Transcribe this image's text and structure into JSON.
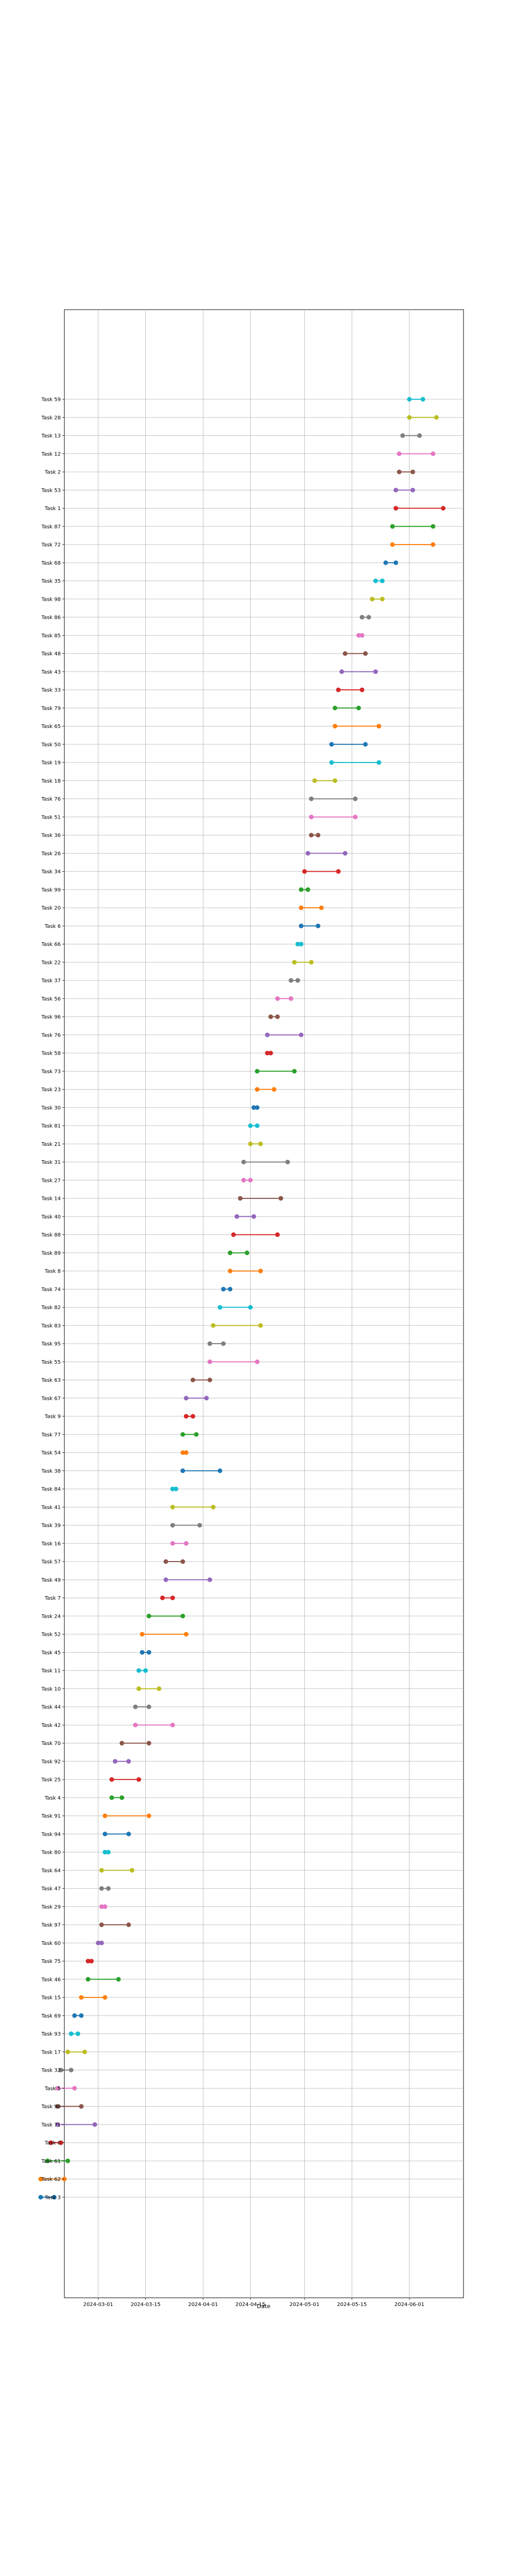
{
  "chart_data": {
    "type": "dumbbell",
    "title": "",
    "xlabel": "Date",
    "ylabel": "",
    "grid": true,
    "legend": "none",
    "xlim": [
      "2024-02-20",
      "2024-06-17"
    ],
    "x_ticks": [
      "2024-03-01",
      "2024-03-15",
      "2024-04-01",
      "2024-04-15",
      "2024-05-01",
      "2024-05-15",
      "2024-06-01"
    ],
    "palette": [
      "#1f77b4",
      "#ff7f0e",
      "#2ca02c",
      "#d62728",
      "#9467bd",
      "#8c564b",
      "#e377c2",
      "#7f7f7f",
      "#bcbd22",
      "#17becf"
    ],
    "tasks": [
      {
        "label": "Task 59",
        "start": "2024-06-01",
        "end": "2024-06-05"
      },
      {
        "label": "Task 28",
        "start": "2024-06-01",
        "end": "2024-06-09"
      },
      {
        "label": "Task 13",
        "start": "2024-05-30",
        "end": "2024-06-04"
      },
      {
        "label": "Task 12",
        "start": "2024-05-29",
        "end": "2024-06-08"
      },
      {
        "label": "Task 2",
        "start": "2024-05-29",
        "end": "2024-06-02"
      },
      {
        "label": "Task 53",
        "start": "2024-05-28",
        "end": "2024-06-02"
      },
      {
        "label": "Task 1",
        "start": "2024-05-28",
        "end": "2024-06-11"
      },
      {
        "label": "Task 87",
        "start": "2024-05-27",
        "end": "2024-06-08"
      },
      {
        "label": "Task 72",
        "start": "2024-05-27",
        "end": "2024-06-08"
      },
      {
        "label": "Task 68",
        "start": "2024-05-25",
        "end": "2024-05-28"
      },
      {
        "label": "Task 35",
        "start": "2024-05-22",
        "end": "2024-05-24"
      },
      {
        "label": "Task 98",
        "start": "2024-05-21",
        "end": "2024-05-24"
      },
      {
        "label": "Task 86",
        "start": "2024-05-18",
        "end": "2024-05-20"
      },
      {
        "label": "Task 85",
        "start": "2024-05-17",
        "end": "2024-05-18"
      },
      {
        "label": "Task 48",
        "start": "2024-05-13",
        "end": "2024-05-19"
      },
      {
        "label": "Task 43",
        "start": "2024-05-12",
        "end": "2024-05-22"
      },
      {
        "label": "Task 33",
        "start": "2024-05-11",
        "end": "2024-05-18"
      },
      {
        "label": "Task 79",
        "start": "2024-05-10",
        "end": "2024-05-17"
      },
      {
        "label": "Task 65",
        "start": "2024-05-10",
        "end": "2024-05-23"
      },
      {
        "label": "Task 50",
        "start": "2024-05-09",
        "end": "2024-05-19"
      },
      {
        "label": "Task 19",
        "start": "2024-05-09",
        "end": "2024-05-23"
      },
      {
        "label": "Task 18",
        "start": "2024-05-04",
        "end": "2024-05-10"
      },
      {
        "label": "Task 76",
        "start": "2024-05-03",
        "end": "2024-05-16"
      },
      {
        "label": "Task 51",
        "start": "2024-05-03",
        "end": "2024-05-16"
      },
      {
        "label": "Task 36",
        "start": "2024-05-03",
        "end": "2024-05-05"
      },
      {
        "label": "Task 26",
        "start": "2024-05-02",
        "end": "2024-05-13"
      },
      {
        "label": "Task 34",
        "start": "2024-05-01",
        "end": "2024-05-11"
      },
      {
        "label": "Task 99",
        "start": "2024-04-30",
        "end": "2024-05-02"
      },
      {
        "label": "Task 20",
        "start": "2024-04-30",
        "end": "2024-05-06"
      },
      {
        "label": "Task 6",
        "start": "2024-04-30",
        "end": "2024-05-05"
      },
      {
        "label": "Task 66",
        "start": "2024-04-29",
        "end": "2024-04-30"
      },
      {
        "label": "Task 22",
        "start": "2024-04-28",
        "end": "2024-05-03"
      },
      {
        "label": "Task 37",
        "start": "2024-04-27",
        "end": "2024-04-29"
      },
      {
        "label": "Task 56",
        "start": "2024-04-23",
        "end": "2024-04-27"
      },
      {
        "label": "Task 96",
        "start": "2024-04-21",
        "end": "2024-04-23"
      },
      {
        "label": "Task 76",
        "start": "2024-04-20",
        "end": "2024-04-30"
      },
      {
        "label": "Task 58",
        "start": "2024-04-20",
        "end": "2024-04-21"
      },
      {
        "label": "Task 73",
        "start": "2024-04-17",
        "end": "2024-04-28"
      },
      {
        "label": "Task 23",
        "start": "2024-04-17",
        "end": "2024-04-22"
      },
      {
        "label": "Task 30",
        "start": "2024-04-16",
        "end": "2024-04-17"
      },
      {
        "label": "Task 81",
        "start": "2024-04-15",
        "end": "2024-04-17"
      },
      {
        "label": "Task 21",
        "start": "2024-04-15",
        "end": "2024-04-18"
      },
      {
        "label": "Task 31",
        "start": "2024-04-13",
        "end": "2024-04-26"
      },
      {
        "label": "Task 27",
        "start": "2024-04-13",
        "end": "2024-04-15"
      },
      {
        "label": "Task 14",
        "start": "2024-04-12",
        "end": "2024-04-24"
      },
      {
        "label": "Task 40",
        "start": "2024-04-11",
        "end": "2024-04-16"
      },
      {
        "label": "Task 88",
        "start": "2024-04-10",
        "end": "2024-04-23"
      },
      {
        "label": "Task 89",
        "start": "2024-04-09",
        "end": "2024-04-14"
      },
      {
        "label": "Task 8",
        "start": "2024-04-09",
        "end": "2024-04-18"
      },
      {
        "label": "Task 74",
        "start": "2024-04-07",
        "end": "2024-04-09"
      },
      {
        "label": "Task 82",
        "start": "2024-04-06",
        "end": "2024-04-15"
      },
      {
        "label": "Task 83",
        "start": "2024-04-04",
        "end": "2024-04-18"
      },
      {
        "label": "Task 95",
        "start": "2024-04-03",
        "end": "2024-04-07"
      },
      {
        "label": "Task 55",
        "start": "2024-04-03",
        "end": "2024-04-17"
      },
      {
        "label": "Task 63",
        "start": "2024-03-29",
        "end": "2024-04-03"
      },
      {
        "label": "Task 67",
        "start": "2024-03-27",
        "end": "2024-04-02"
      },
      {
        "label": "Task 9",
        "start": "2024-03-27",
        "end": "2024-03-29"
      },
      {
        "label": "Task 77",
        "start": "2024-03-26",
        "end": "2024-03-30"
      },
      {
        "label": "Task 54",
        "start": "2024-03-26",
        "end": "2024-03-27"
      },
      {
        "label": "Task 38",
        "start": "2024-03-26",
        "end": "2024-04-06"
      },
      {
        "label": "Task 84",
        "start": "2024-03-23",
        "end": "2024-03-24"
      },
      {
        "label": "Task 41",
        "start": "2024-03-23",
        "end": "2024-04-04"
      },
      {
        "label": "Task 39",
        "start": "2024-03-23",
        "end": "2024-03-31"
      },
      {
        "label": "Task 16",
        "start": "2024-03-23",
        "end": "2024-03-27"
      },
      {
        "label": "Task 57",
        "start": "2024-03-21",
        "end": "2024-03-26"
      },
      {
        "label": "Task 49",
        "start": "2024-03-21",
        "end": "2024-04-03"
      },
      {
        "label": "Task 7",
        "start": "2024-03-20",
        "end": "2024-03-23"
      },
      {
        "label": "Task 24",
        "start": "2024-03-16",
        "end": "2024-03-26"
      },
      {
        "label": "Task 52",
        "start": "2024-03-14",
        "end": "2024-03-27"
      },
      {
        "label": "Task 45",
        "start": "2024-03-14",
        "end": "2024-03-16"
      },
      {
        "label": "Task 11",
        "start": "2024-03-13",
        "end": "2024-03-15"
      },
      {
        "label": "Task 10",
        "start": "2024-03-13",
        "end": "2024-03-19"
      },
      {
        "label": "Task 44",
        "start": "2024-03-12",
        "end": "2024-03-16"
      },
      {
        "label": "Task 42",
        "start": "2024-03-12",
        "end": "2024-03-23"
      },
      {
        "label": "Task 70",
        "start": "2024-03-08",
        "end": "2024-03-16"
      },
      {
        "label": "Task 92",
        "start": "2024-03-06",
        "end": "2024-03-10"
      },
      {
        "label": "Task 25",
        "start": "2024-03-05",
        "end": "2024-03-13"
      },
      {
        "label": "Task 4",
        "start": "2024-03-05",
        "end": "2024-03-08"
      },
      {
        "label": "Task 91",
        "start": "2024-03-03",
        "end": "2024-03-16"
      },
      {
        "label": "Task 94",
        "start": "2024-03-03",
        "end": "2024-03-10"
      },
      {
        "label": "Task 80",
        "start": "2024-03-03",
        "end": "2024-03-04"
      },
      {
        "label": "Task 64",
        "start": "2024-03-02",
        "end": "2024-03-11"
      },
      {
        "label": "Task 47",
        "start": "2024-03-02",
        "end": "2024-03-04"
      },
      {
        "label": "Task 29",
        "start": "2024-03-02",
        "end": "2024-03-03"
      },
      {
        "label": "Task 97",
        "start": "2024-03-02",
        "end": "2024-03-10"
      },
      {
        "label": "Task 60",
        "start": "2024-03-01",
        "end": "2024-03-02"
      },
      {
        "label": "Task 75",
        "start": "2024-02-27",
        "end": "2024-02-28"
      },
      {
        "label": "Task 46",
        "start": "2024-02-27",
        "end": "2024-03-07"
      },
      {
        "label": "Task 15",
        "start": "2024-02-25",
        "end": "2024-03-03"
      },
      {
        "label": "Task 69",
        "start": "2024-02-23",
        "end": "2024-02-25"
      },
      {
        "label": "Task 93",
        "start": "2024-02-22",
        "end": "2024-02-24"
      },
      {
        "label": "Task 17",
        "start": "2024-02-21",
        "end": "2024-02-26"
      },
      {
        "label": "Task 32",
        "start": "2024-02-19",
        "end": "2024-02-22"
      },
      {
        "label": "Task 5",
        "start": "2024-02-18",
        "end": "2024-02-23"
      },
      {
        "label": "Task 90",
        "start": "2024-02-18",
        "end": "2024-02-25"
      },
      {
        "label": "Task 71",
        "start": "2024-02-18",
        "end": "2024-02-29"
      },
      {
        "label": "Task 0",
        "start": "2024-02-16",
        "end": "2024-02-19"
      },
      {
        "label": "Task 61",
        "start": "2024-02-15",
        "end": "2024-02-21"
      },
      {
        "label": "Task 62",
        "start": "2024-02-13",
        "end": "2024-02-20"
      },
      {
        "label": "Task 3",
        "start": "2024-02-13",
        "end": "2024-02-17"
      }
    ]
  }
}
